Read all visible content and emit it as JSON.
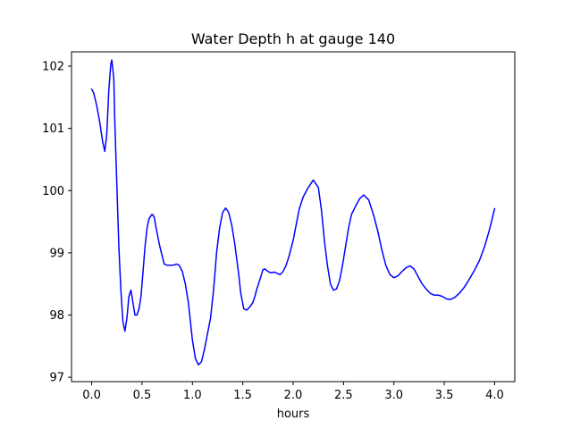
{
  "chart_data": {
    "type": "line",
    "title": "Water Depth h at gauge 140",
    "xlabel": "hours",
    "ylabel": "",
    "xlim": [
      -0.2,
      4.2
    ],
    "ylim": [
      96.93,
      102.23
    ],
    "xticks": [
      0.0,
      0.5,
      1.0,
      1.5,
      2.0,
      2.5,
      3.0,
      3.5,
      4.0
    ],
    "xtick_labels": [
      "0.0",
      "0.5",
      "1.0",
      "1.5",
      "2.0",
      "2.5",
      "3.0",
      "3.5",
      "4.0"
    ],
    "yticks": [
      97,
      98,
      99,
      100,
      101,
      102
    ],
    "ytick_labels": [
      "97",
      "98",
      "99",
      "100",
      "101",
      "102"
    ],
    "grid": false,
    "series": [
      {
        "color": "#0000ff",
        "x": [
          0.0,
          0.02,
          0.05,
          0.08,
          0.11,
          0.13,
          0.15,
          0.17,
          0.19,
          0.2,
          0.22,
          0.23,
          0.25,
          0.27,
          0.29,
          0.31,
          0.33,
          0.35,
          0.37,
          0.39,
          0.41,
          0.43,
          0.45,
          0.47,
          0.49,
          0.51,
          0.53,
          0.55,
          0.57,
          0.6,
          0.62,
          0.64,
          0.67,
          0.7,
          0.72,
          0.75,
          0.78,
          0.81,
          0.84,
          0.87,
          0.9,
          0.93,
          0.96,
          0.98,
          1.0,
          1.03,
          1.06,
          1.09,
          1.12,
          1.15,
          1.18,
          1.21,
          1.24,
          1.27,
          1.3,
          1.33,
          1.36,
          1.39,
          1.42,
          1.44,
          1.46,
          1.48,
          1.51,
          1.54,
          1.57,
          1.6,
          1.62,
          1.64,
          1.66,
          1.68,
          1.7,
          1.72,
          1.75,
          1.78,
          1.81,
          1.84,
          1.87,
          1.9,
          1.93,
          1.96,
          2.0,
          2.03,
          2.06,
          2.1,
          2.15,
          2.2,
          2.25,
          2.28,
          2.31,
          2.34,
          2.37,
          2.4,
          2.43,
          2.46,
          2.49,
          2.52,
          2.55,
          2.58,
          2.62,
          2.66,
          2.7,
          2.75,
          2.8,
          2.84,
          2.88,
          2.92,
          2.96,
          3.0,
          3.04,
          3.08,
          3.12,
          3.16,
          3.2,
          3.24,
          3.28,
          3.32,
          3.36,
          3.4,
          3.44,
          3.48,
          3.52,
          3.56,
          3.6,
          3.65,
          3.7,
          3.75,
          3.8,
          3.85,
          3.9,
          3.95,
          4.0
        ],
        "y": [
          101.63,
          101.57,
          101.37,
          101.1,
          100.78,
          100.63,
          100.9,
          101.6,
          102.03,
          102.1,
          101.8,
          101.1,
          100.1,
          99.1,
          98.4,
          97.9,
          97.74,
          97.95,
          98.3,
          98.4,
          98.2,
          98.0,
          98.0,
          98.1,
          98.3,
          98.7,
          99.1,
          99.4,
          99.55,
          99.62,
          99.58,
          99.4,
          99.15,
          98.95,
          98.82,
          98.8,
          98.8,
          98.8,
          98.82,
          98.8,
          98.7,
          98.5,
          98.2,
          97.9,
          97.6,
          97.3,
          97.2,
          97.25,
          97.45,
          97.7,
          97.95,
          98.4,
          99.0,
          99.4,
          99.65,
          99.72,
          99.65,
          99.45,
          99.15,
          98.9,
          98.65,
          98.35,
          98.1,
          98.08,
          98.13,
          98.2,
          98.3,
          98.42,
          98.52,
          98.62,
          98.73,
          98.74,
          98.7,
          98.68,
          98.69,
          98.67,
          98.65,
          98.7,
          98.8,
          98.95,
          99.2,
          99.45,
          99.7,
          99.9,
          100.05,
          100.17,
          100.05,
          99.7,
          99.2,
          98.8,
          98.5,
          98.4,
          98.42,
          98.55,
          98.8,
          99.1,
          99.4,
          99.62,
          99.75,
          99.87,
          99.93,
          99.85,
          99.6,
          99.35,
          99.05,
          98.8,
          98.65,
          98.6,
          98.63,
          98.7,
          98.76,
          98.79,
          98.74,
          98.62,
          98.5,
          98.42,
          98.35,
          98.32,
          98.32,
          98.3,
          98.26,
          98.25,
          98.28,
          98.35,
          98.45,
          98.58,
          98.72,
          98.88,
          99.1,
          99.38,
          99.71
        ]
      }
    ]
  }
}
